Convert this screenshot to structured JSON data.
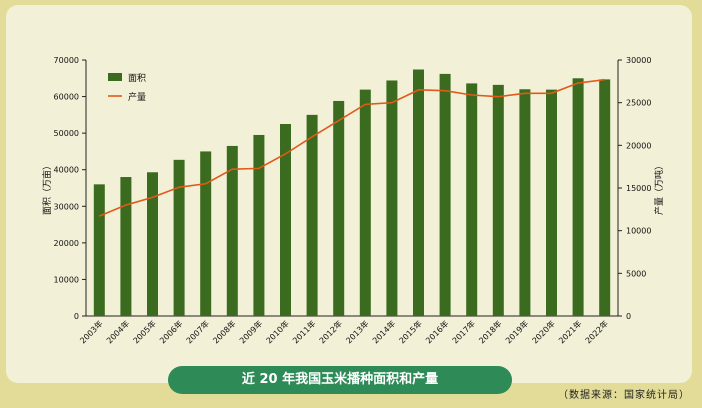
{
  "caption": "近 20 年我国玉米播种面积和产量",
  "source": "（数据来源：国家统计局）",
  "chart_data": {
    "type": "bar",
    "categories": [
      "2003年",
      "2004年",
      "2005年",
      "2006年",
      "2007年",
      "2008年",
      "2009年",
      "2010年",
      "2011年",
      "2012年",
      "2013年",
      "2014年",
      "2015年",
      "2016年",
      "2017年",
      "2018年",
      "2019年",
      "2020年",
      "2021年",
      "2022年"
    ],
    "series": [
      {
        "name": "面积",
        "type": "bar",
        "axis": "left",
        "color": "#3a6b1e",
        "values": [
          36000,
          38000,
          39300,
          42700,
          45000,
          46500,
          49500,
          52500,
          55000,
          58800,
          61900,
          64400,
          67400,
          66200,
          63600,
          63200,
          62000,
          61900,
          65000,
          64700
        ]
      },
      {
        "name": "产量",
        "type": "line",
        "axis": "right",
        "color": "#e05a1a",
        "values": [
          11700,
          13000,
          13900,
          15100,
          15500,
          17200,
          17300,
          19000,
          21000,
          22900,
          24800,
          25000,
          26500,
          26400,
          25900,
          25700,
          26100,
          26100,
          27300,
          27700
        ]
      }
    ],
    "ylabel": "面积（万亩）",
    "y2label": "产量（万吨）",
    "ylim": [
      0,
      70000
    ],
    "y2lim": [
      0,
      30000
    ],
    "yticks": [
      0,
      10000,
      20000,
      30000,
      40000,
      50000,
      60000,
      70000
    ],
    "y2ticks": [
      0,
      5000,
      10000,
      15000,
      20000,
      25000,
      30000
    ],
    "legend": "top-left",
    "grid": false
  }
}
